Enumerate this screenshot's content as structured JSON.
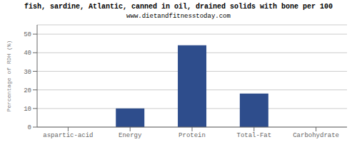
{
  "chart_data": {
    "type": "bar",
    "title": "fish, sardine, Atlantic, canned in oil, drained solids with bone per 100",
    "subtitle": "www.dietandfitnesstoday.com",
    "categories": [
      "aspartic-acid",
      "Energy",
      "Protein",
      "Total-Fat",
      "Carbohydrate"
    ],
    "values": [
      0,
      10,
      44,
      18,
      0
    ],
    "color": "#2e4d8c",
    "ylabel": "Percentage of RDH (%)",
    "ylim": [
      0,
      55
    ],
    "yticks": [
      0,
      10,
      20,
      30,
      40,
      50
    ],
    "grid": true
  }
}
